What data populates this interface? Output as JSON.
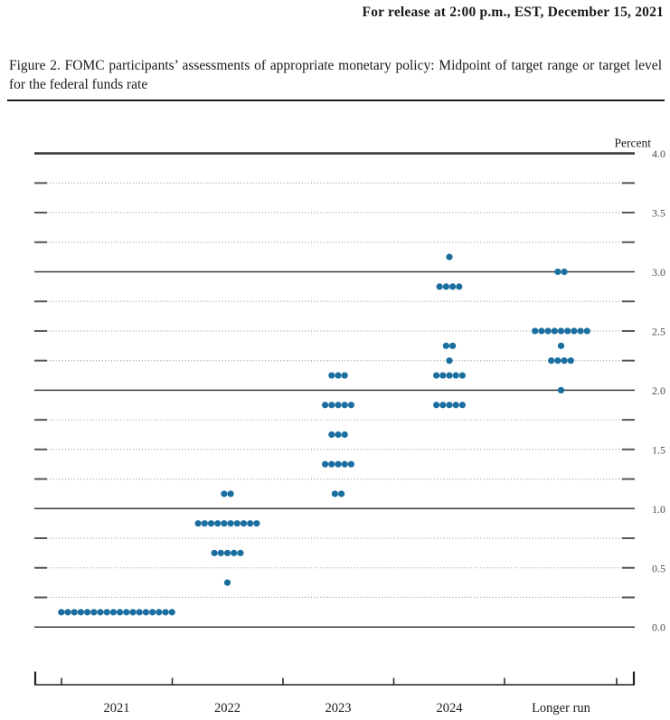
{
  "release_line": "For release at 2:00 p.m., EST, December 15, 2021",
  "figure_title": "Figure 2.  FOMC participants’ assessments of appropriate monetary policy:  Midpoint of target range or target level for the federal funds rate",
  "chart_data": {
    "type": "scatter",
    "subtype": "fomc-dot-plot",
    "title": "FOMC participants’ assessments of appropriate monetary policy: Midpoint of target range or target level for the federal funds rate",
    "ylabel": "Percent",
    "ylim": [
      0,
      4.25
    ],
    "gridline_step": 0.25,
    "grid": {
      "solid_at": "whole percents",
      "dotted_at": "quarter percents",
      "tick_label_step": 0.5
    },
    "ytick_labels": [
      "0.0",
      "0.5",
      "1.0",
      "1.5",
      "2.0",
      "2.5",
      "3.0",
      "3.5",
      "4.0"
    ],
    "categories": [
      "2021",
      "2022",
      "2023",
      "2024",
      "Longer run"
    ],
    "series": [
      {
        "category": "2021",
        "dots": [
          {
            "value": 0.125,
            "count": 18
          }
        ]
      },
      {
        "category": "2022",
        "dots": [
          {
            "value": 1.125,
            "count": 2
          },
          {
            "value": 0.875,
            "count": 10
          },
          {
            "value": 0.625,
            "count": 5
          },
          {
            "value": 0.375,
            "count": 1
          }
        ]
      },
      {
        "category": "2023",
        "dots": [
          {
            "value": 2.125,
            "count": 3
          },
          {
            "value": 1.875,
            "count": 5
          },
          {
            "value": 1.625,
            "count": 3
          },
          {
            "value": 1.375,
            "count": 5
          },
          {
            "value": 1.125,
            "count": 2
          }
        ]
      },
      {
        "category": "2024",
        "dots": [
          {
            "value": 3.125,
            "count": 1
          },
          {
            "value": 2.875,
            "count": 4
          },
          {
            "value": 2.375,
            "count": 2
          },
          {
            "value": 2.25,
            "count": 1
          },
          {
            "value": 2.125,
            "count": 5
          },
          {
            "value": 1.875,
            "count": 5
          }
        ]
      },
      {
        "category": "Longer run",
        "dots": [
          {
            "value": 3.0,
            "count": 2
          },
          {
            "value": 2.5,
            "count": 9
          },
          {
            "value": 2.375,
            "count": 1
          },
          {
            "value": 2.25,
            "count": 4
          },
          {
            "value": 2.0,
            "count": 1
          }
        ]
      }
    ],
    "colors": {
      "dot": "#1b6fa0",
      "solid_grid": "#3a3a3a",
      "dotted_grid": "#979797",
      "grid_end_dash": "#555555",
      "axis": "#1f1f1f",
      "tick_label": "#4c4c44",
      "text": "#1a1a1a"
    }
  }
}
